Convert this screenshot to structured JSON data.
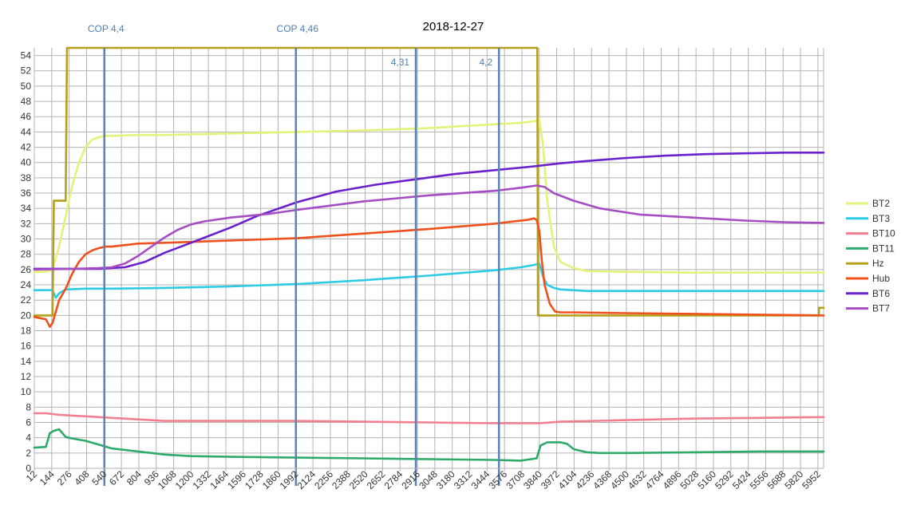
{
  "chart_data": {
    "type": "line",
    "title": "2018-12-27",
    "xlabel": "",
    "ylabel": "",
    "ylim": [
      0,
      55
    ],
    "xlim": [
      12,
      5995
    ],
    "grid": true,
    "legend_position": "right",
    "y_ticks": [
      "0",
      "2",
      "4",
      "6",
      "8",
      "10",
      "12",
      "14",
      "16",
      "18",
      "20",
      "22",
      "24",
      "26",
      "28",
      "30",
      "32",
      "34",
      "36",
      "38",
      "40",
      "42",
      "44",
      "46",
      "48",
      "50",
      "52",
      "54"
    ],
    "x_ticks": [
      "12",
      "144",
      "276",
      "408",
      "540",
      "672",
      "804",
      "936",
      "1068",
      "1200",
      "1332",
      "1464",
      "1596",
      "1728",
      "1860",
      "1992",
      "2124",
      "2256",
      "2388",
      "2520",
      "2652",
      "2784",
      "2916",
      "3048",
      "3180",
      "3312",
      "3444",
      "3576",
      "3708",
      "3840",
      "3972",
      "4104",
      "4236",
      "4368",
      "4500",
      "4632",
      "4764",
      "4896",
      "5028",
      "5160",
      "5292",
      "5424",
      "5556",
      "5688",
      "5820",
      "5952"
    ],
    "annotations": [
      {
        "x": 543,
        "label": "COP 4,4",
        "pos": "top"
      },
      {
        "x": 1995,
        "label": "COP 4,46",
        "pos": "top"
      },
      {
        "x": 2904,
        "label": "4,31",
        "pos": "inner"
      },
      {
        "x": 3534,
        "label": "4,2",
        "pos": "inner"
      }
    ],
    "series": [
      {
        "name": "BT2",
        "color": "#e3f27a",
        "x": [
          12,
          100,
          150,
          200,
          250,
          300,
          350,
          400,
          450,
          500,
          550,
          600,
          800,
          1000,
          1500,
          2000,
          2500,
          3000,
          3500,
          3700,
          3800,
          3840,
          3870,
          3900,
          3950,
          4000,
          4100,
          4200,
          4500,
          5000,
          5500,
          5995
        ],
        "y": [
          25.7,
          25.7,
          26,
          29,
          33,
          37,
          40,
          42,
          43,
          43.3,
          43.5,
          43.5,
          43.6,
          43.6,
          43.8,
          44,
          44.2,
          44.5,
          45,
          45.2,
          45.4,
          45.6,
          42,
          35,
          29,
          27,
          26.2,
          25.8,
          25.7,
          25.6,
          25.6,
          25.6
        ]
      },
      {
        "name": "BT3",
        "color": "#2ecbe5",
        "x": [
          12,
          150,
          175,
          200,
          250,
          400,
          600,
          1000,
          1500,
          2000,
          2500,
          3000,
          3500,
          3700,
          3800,
          3840,
          3870,
          3900,
          3950,
          4000,
          4200,
          4500,
          5000,
          5995
        ],
        "y": [
          23.3,
          23.3,
          22.3,
          22.9,
          23.4,
          23.5,
          23.5,
          23.6,
          23.8,
          24.1,
          24.6,
          25.2,
          25.9,
          26.3,
          26.6,
          26.8,
          25,
          24,
          23.6,
          23.4,
          23.2,
          23.2,
          23.2,
          23.2
        ]
      },
      {
        "name": "BT10",
        "color": "#f08090",
        "x": [
          12,
          100,
          200,
          300,
          400,
          600,
          800,
          1000,
          1500,
          2000,
          2500,
          3000,
          3500,
          3840,
          4000,
          4500,
          5000,
          5500,
          5995
        ],
        "y": [
          7.2,
          7.2,
          7,
          6.9,
          6.8,
          6.6,
          6.4,
          6.2,
          6.2,
          6.2,
          6.1,
          6,
          5.9,
          5.9,
          6.1,
          6.3,
          6.5,
          6.6,
          6.7
        ]
      },
      {
        "name": "BT11",
        "color": "#2eaa6a",
        "x": [
          12,
          100,
          130,
          160,
          200,
          250,
          300,
          400,
          500,
          600,
          700,
          800,
          900,
          1000,
          1200,
          1500,
          2000,
          2500,
          3000,
          3500,
          3700,
          3820,
          3850,
          3900,
          4000,
          4050,
          4100,
          4200,
          4300,
          4500,
          5000,
          5500,
          5995
        ],
        "y": [
          2.7,
          2.8,
          4.6,
          4.9,
          5.1,
          4.1,
          3.9,
          3.6,
          3.1,
          2.6,
          2.4,
          2.2,
          2,
          1.8,
          1.6,
          1.5,
          1.4,
          1.3,
          1.2,
          1.1,
          1.0,
          1.3,
          3,
          3.4,
          3.4,
          3.2,
          2.5,
          2.1,
          2,
          2,
          2.1,
          2.2,
          2.2
        ]
      },
      {
        "name": "Hz",
        "color": "#b4a01a",
        "x": [
          12,
          150,
          160,
          160,
          250,
          260,
          260,
          3800,
          3825,
          3830,
          5960,
          5960,
          5995
        ],
        "y": [
          20,
          20,
          35,
          35,
          35,
          55,
          55,
          55,
          55,
          20,
          20,
          21,
          21
        ]
      },
      {
        "name": "Hub",
        "color": "#f0501e",
        "x": [
          12,
          100,
          130,
          150,
          200,
          250,
          300,
          350,
          400,
          450,
          500,
          550,
          600,
          700,
          800,
          1000,
          1500,
          2000,
          2500,
          3000,
          3500,
          3750,
          3800,
          3820,
          3840,
          3860,
          3880,
          3920,
          3960,
          4000,
          4100,
          4500,
          5000,
          5500,
          5995
        ],
        "y": [
          19.8,
          19.5,
          18.5,
          19,
          22,
          23.5,
          25.5,
          27,
          28,
          28.5,
          28.8,
          29,
          29,
          29.2,
          29.4,
          29.5,
          29.8,
          30.1,
          30.7,
          31.3,
          32,
          32.5,
          32.7,
          32.5,
          31,
          27,
          24,
          21.5,
          20.5,
          20.4,
          20.4,
          20.3,
          20.2,
          20.1,
          20
        ]
      },
      {
        "name": "BT6",
        "color": "#6a20cc",
        "x": [
          12,
          500,
          700,
          850,
          1000,
          1200,
          1500,
          1700,
          2000,
          2300,
          2600,
          2900,
          3200,
          3500,
          3800,
          4000,
          4200,
          4500,
          4800,
          5100,
          5400,
          5700,
          5995
        ],
        "y": [
          26.1,
          26.1,
          26.3,
          27,
          28.2,
          29.5,
          31.5,
          33,
          34.8,
          36.2,
          37.1,
          37.8,
          38.5,
          39,
          39.5,
          39.9,
          40.2,
          40.6,
          40.9,
          41.1,
          41.2,
          41.3,
          41.3
        ]
      },
      {
        "name": "BT7",
        "color": "#a64dc4",
        "x": [
          12,
          300,
          500,
          600,
          700,
          800,
          900,
          1000,
          1100,
          1200,
          1300,
          1500,
          1800,
          2000,
          2500,
          3000,
          3500,
          3700,
          3820,
          3880,
          3950,
          4100,
          4300,
          4600,
          5000,
          5400,
          5700,
          5995
        ],
        "y": [
          26,
          26.1,
          26.2,
          26.3,
          26.8,
          27.8,
          29,
          30.2,
          31.2,
          31.9,
          32.3,
          32.8,
          33.3,
          33.8,
          34.9,
          35.7,
          36.3,
          36.7,
          37,
          36.8,
          36,
          35,
          34,
          33.2,
          32.8,
          32.4,
          32.2,
          32.1
        ]
      }
    ]
  }
}
